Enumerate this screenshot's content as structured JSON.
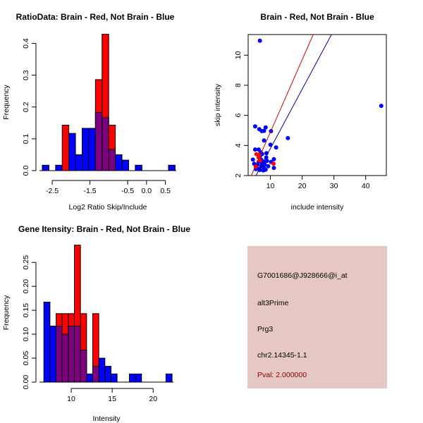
{
  "colors": {
    "brain": "#ff0000",
    "not_brain": "#0000ff",
    "overlap": "#7f007f",
    "panel": "#e5c8c3",
    "pval": "#8b0000"
  },
  "chart_data": [
    {
      "type": "bar",
      "title": "RatioData: Brain - Red, Not Brain - Blue",
      "xlabel": "Log2 Ratio Skip/Include",
      "ylabel": "Frequency",
      "xlim": [
        -2.8,
        0.75
      ],
      "ylim": [
        0,
        0.43
      ],
      "xticks": [
        "-2.5",
        "-1.5",
        "-0.5",
        "0.0",
        "0.5"
      ],
      "xtick_values": [
        -2.5,
        -1.5,
        -0.5,
        0.0,
        0.5
      ],
      "yticks": [
        "0.0",
        "0.1",
        "0.2",
        "0.3",
        "0.4"
      ],
      "ytick_values": [
        0,
        0.1,
        0.2,
        0.3,
        0.4
      ],
      "bin_start": -2.763,
      "bin_width": 0.176,
      "series": [
        {
          "name": "Not Brain",
          "values": [
            0.017,
            0,
            0.017,
            0,
            0.117,
            0.05,
            0.133,
            0.133,
            0.183,
            0.167,
            0.067,
            0.05,
            0.033,
            0,
            0.017,
            0,
            0,
            0,
            0,
            0.017
          ]
        },
        {
          "name": "Brain",
          "values": [
            0,
            0,
            0,
            0.143,
            0,
            0,
            0,
            0,
            0.286,
            0.429,
            0.143,
            0,
            0,
            0,
            0,
            0,
            0,
            0,
            0,
            0
          ]
        }
      ]
    },
    {
      "type": "scatter",
      "title": "Brain - Red, Not Brain - Blue",
      "xlabel": "include intensity",
      "ylabel": "skip intensity",
      "xlim": [
        3.0,
        46.5
      ],
      "ylim": [
        2,
        11.37
      ],
      "xticks": [
        "10",
        "20",
        "30",
        "40"
      ],
      "xtick_values": [
        10,
        20,
        30,
        40
      ],
      "yticks": [
        "2",
        "4",
        "6",
        "8",
        "10"
      ],
      "ytick_values": [
        2,
        4,
        6,
        8,
        10
      ],
      "series": [
        {
          "name": "Not Brain",
          "points": [
            [
              6.7,
              10.96
            ],
            [
              44.9,
              6.63
            ],
            [
              15.5,
              4.49
            ],
            [
              5.2,
              5.27
            ],
            [
              6.5,
              5.08
            ],
            [
              7.3,
              4.95
            ],
            [
              8.0,
              4.97
            ],
            [
              8.5,
              5.2
            ],
            [
              10.2,
              4.95
            ],
            [
              8.0,
              4.33
            ],
            [
              10.0,
              4.05
            ],
            [
              11.8,
              3.87
            ],
            [
              5.2,
              3.73
            ],
            [
              6.3,
              3.73
            ],
            [
              6.9,
              3.55
            ],
            [
              8.75,
              3.49
            ],
            [
              7.4,
              3.43
            ],
            [
              4.5,
              3.06
            ],
            [
              11.1,
              3.09
            ],
            [
              10.2,
              2.9
            ],
            [
              11.1,
              2.51
            ],
            [
              9.3,
              2.62
            ],
            [
              8.5,
              2.39
            ],
            [
              7.8,
              2.34
            ],
            [
              6.7,
              2.37
            ],
            [
              5.6,
              2.62
            ],
            [
              4.9,
              2.78
            ],
            [
              8.7,
              3.2
            ],
            [
              7.8,
              2.93
            ],
            [
              7.1,
              3.06
            ],
            [
              6.3,
              2.9
            ],
            [
              6.0,
              2.75
            ],
            [
              7.1,
              2.6
            ],
            [
              8.2,
              2.75
            ],
            [
              6.3,
              2.43
            ],
            [
              5.4,
              2.43
            ],
            [
              7.4,
              2.78
            ],
            [
              8.9,
              2.98
            ],
            [
              6.7,
              3.29
            ],
            [
              7.9,
              2.56
            ]
          ],
          "fit": {
            "slope": 0.394,
            "intercept": -0.145
          }
        },
        {
          "name": "Brain",
          "points": [
            [
              5.6,
              3.42
            ],
            [
              6.5,
              3.37
            ],
            [
              6.3,
              3.2
            ],
            [
              11.0,
              2.79
            ],
            [
              5.4,
              2.6
            ],
            [
              6.7,
              3.0
            ]
          ],
          "fit": {
            "slope": 0.481,
            "intercept": 0.076
          }
        }
      ]
    },
    {
      "type": "bar",
      "title": "Gene Itensity: Brain - Red, Not Brain - Blue",
      "xlabel": "Intensity",
      "ylabel": "Frequency",
      "xlim": [
        6.3,
        22.3
      ],
      "ylim": [
        0,
        0.29
      ],
      "xticks": [
        "10",
        "15",
        "20"
      ],
      "xtick_values": [
        10,
        15,
        20
      ],
      "yticks": [
        "0.00",
        "0.05",
        "0.10",
        "0.15",
        "0.20",
        "0.25"
      ],
      "ytick_values": [
        0,
        0.05,
        0.1,
        0.15,
        0.2,
        0.25
      ],
      "bin_start": 6.66,
      "bin_width": 0.745,
      "series": [
        {
          "name": "Not Brain",
          "values": [
            0.167,
            0.117,
            0.117,
            0.1,
            0.117,
            0.117,
            0.067,
            0.017,
            0.033,
            0.05,
            0.033,
            0.017,
            0,
            0,
            0.017,
            0.017,
            0,
            0,
            0,
            0,
            0.017
          ]
        },
        {
          "name": "Brain",
          "values": [
            0,
            0,
            0.143,
            0.143,
            0.143,
            0.286,
            0.143,
            0,
            0.143,
            0,
            0,
            0,
            0,
            0,
            0,
            0,
            0,
            0,
            0,
            0,
            0
          ]
        }
      ]
    }
  ],
  "info": {
    "probe": "G7001686@J928666@i_at",
    "event": "alt3Prime",
    "gene": "Prg3",
    "location": "chr2.14345-1.1",
    "pval": "Pval: 2.000000"
  }
}
